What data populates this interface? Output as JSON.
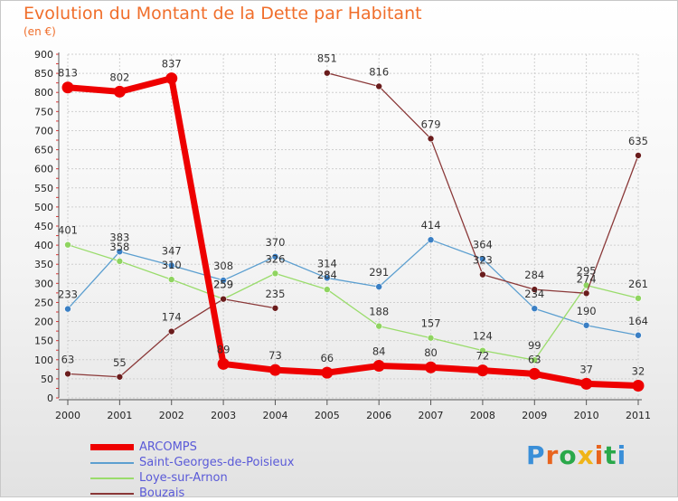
{
  "page": {
    "title": "Evolution du Montant de la Dette par Habitant",
    "subtitle": "(en €)"
  },
  "logo": {
    "text": "Proxiti",
    "colors": [
      "#3a8fd8",
      "#e8641e",
      "#2aa84a",
      "#f0b418",
      "#e8641e",
      "#2aa84a",
      "#3a8fd8"
    ]
  },
  "chart_data": {
    "type": "line",
    "title": "Evolution du Montant de la Dette par Habitant",
    "subtitle": "(en €)",
    "xlabel": "",
    "ylabel": "",
    "x": [
      "2000",
      "2001",
      "2002",
      "2003",
      "2004",
      "2005",
      "2006",
      "2007",
      "2008",
      "2009",
      "2010",
      "2011"
    ],
    "ylim": [
      0,
      900
    ],
    "yticks": [
      0,
      50,
      100,
      150,
      200,
      250,
      300,
      350,
      400,
      450,
      500,
      550,
      600,
      650,
      700,
      750,
      800,
      850,
      900
    ],
    "grid": true,
    "legend_position": "bottom-left",
    "series": [
      {
        "name": "ARCOMPS",
        "color": "#ee0000",
        "values": [
          813,
          802,
          837,
          89,
          73,
          66,
          84,
          80,
          72,
          63,
          37,
          32
        ],
        "labels": [
          "813",
          "802",
          "837",
          "89",
          "73",
          "66",
          "84",
          "80",
          "72",
          "63",
          "37",
          "32"
        ],
        "emphasis": true
      },
      {
        "name": "Saint-Georges-de-Poisieux",
        "color": "#5c9fd0",
        "marker_color": "#3a7fc4",
        "values": [
          233,
          383,
          347,
          308,
          370,
          314,
          291,
          414,
          364,
          234,
          190,
          164
        ],
        "labels": [
          "233",
          "383",
          "347",
          "308",
          "370",
          "314",
          "291",
          "414",
          "364",
          "234",
          "190",
          "164"
        ]
      },
      {
        "name": "Loye-sur-Arnon",
        "color": "#9adc6c",
        "marker_color": "#8fd460",
        "values": [
          401,
          358,
          310,
          259,
          326,
          284,
          188,
          157,
          124,
          99,
          295,
          261
        ],
        "labels": [
          "401",
          "358",
          "310",
          "259",
          "326",
          "284",
          "188",
          "157",
          "124",
          "99",
          "295",
          "261"
        ]
      },
      {
        "name": "Bouzais",
        "color": "#8a3838",
        "marker_color": "#6a1c1c",
        "segments": [
          [
            0,
            4
          ],
          [
            5,
            8
          ],
          [
            8,
            11
          ]
        ],
        "values": [
          63,
          55,
          174,
          259,
          235,
          851,
          816,
          679,
          323,
          284,
          274,
          635
        ],
        "labels": [
          "63",
          "55",
          "174",
          "259",
          "235",
          "851",
          "816",
          "679",
          "323",
          "284",
          "274",
          "635"
        ]
      }
    ]
  }
}
